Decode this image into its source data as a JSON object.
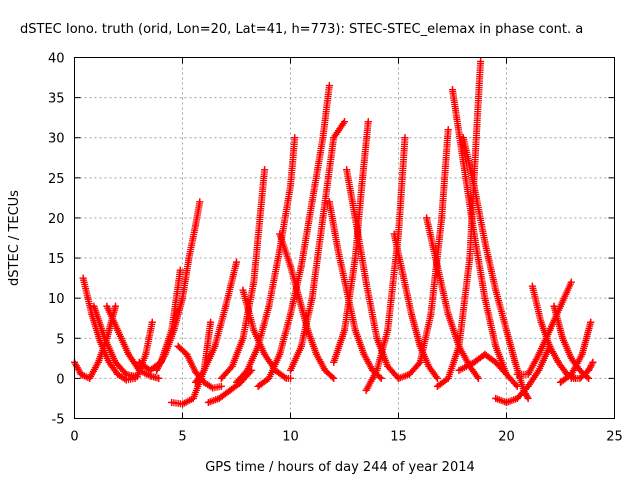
{
  "chart_data": {
    "type": "scatter",
    "title": "dSTEC Iono. truth (orid, Lon=20, Lat=41, h=773): STEC-STEC_elemax in phase cont. a",
    "xlabel": "GPS time / hours of day 244 of year 2014",
    "ylabel": "dSTEC  / TECUs",
    "xlim": [
      0,
      25
    ],
    "ylim": [
      -5,
      40
    ],
    "xticks": [
      0,
      5,
      10,
      15,
      20,
      25
    ],
    "yticks": [
      -5,
      0,
      5,
      10,
      15,
      20,
      25,
      30,
      35,
      40
    ],
    "grid": true,
    "marker": "+",
    "color": "#ff0000",
    "series": [
      {
        "x": [
          0.0,
          0.3,
          0.7,
          1.1,
          1.5,
          1.9
        ],
        "y": [
          2.0,
          0.5,
          0.0,
          2.0,
          5.0,
          9.0
        ]
      },
      {
        "x": [
          0.4,
          0.8,
          1.2,
          1.6,
          2.0,
          2.4,
          2.8
        ],
        "y": [
          12.5,
          8.0,
          4.5,
          2.0,
          0.5,
          -0.2,
          0.0
        ]
      },
      {
        "x": [
          0.9,
          1.4,
          1.9,
          2.4,
          2.9,
          3.3,
          3.6
        ],
        "y": [
          9.0,
          5.0,
          2.0,
          0.5,
          0.2,
          3.0,
          7.0
        ]
      },
      {
        "x": [
          1.5,
          2.0,
          2.5,
          3.0,
          3.5,
          3.9
        ],
        "y": [
          9.0,
          6.0,
          3.0,
          1.0,
          0.3,
          0.0
        ]
      },
      {
        "x": [
          3.0,
          3.5,
          4.0,
          4.5,
          4.9
        ],
        "y": [
          2.0,
          1.0,
          2.0,
          6.0,
          13.5
        ]
      },
      {
        "x": [
          3.8,
          4.2,
          4.6,
          5.0,
          5.3,
          5.6,
          5.8
        ],
        "y": [
          1.0,
          3.0,
          6.0,
          10.0,
          15.0,
          19.0,
          22.0
        ]
      },
      {
        "x": [
          4.5,
          5.0,
          5.5,
          6.0,
          6.3
        ],
        "y": [
          -3.0,
          -3.2,
          -2.5,
          1.0,
          7.0
        ]
      },
      {
        "x": [
          4.8,
          5.2,
          5.6,
          6.0,
          6.4,
          6.8
        ],
        "y": [
          4.0,
          3.0,
          0.8,
          -0.5,
          -1.2,
          -1.0
        ]
      },
      {
        "x": [
          5.6,
          6.0,
          6.5,
          7.0,
          7.5
        ],
        "y": [
          -0.5,
          1.0,
          4.0,
          9.0,
          14.5
        ]
      },
      {
        "x": [
          6.2,
          6.7,
          7.2,
          7.7,
          8.2
        ],
        "y": [
          -3.0,
          -2.5,
          -1.5,
          -0.5,
          1.0
        ]
      },
      {
        "x": [
          6.8,
          7.3,
          7.8,
          8.3,
          8.8
        ],
        "y": [
          0.0,
          1.5,
          5.0,
          12.0,
          26.0
        ]
      },
      {
        "x": [
          7.5,
          8.0,
          8.5,
          9.0,
          9.5,
          10.0,
          10.2
        ],
        "y": [
          -0.5,
          1.0,
          4.0,
          9.0,
          16.0,
          24.0,
          30.0
        ]
      },
      {
        "x": [
          7.8,
          8.3,
          8.8,
          9.3,
          9.8,
          10.0
        ],
        "y": [
          11.0,
          6.0,
          3.0,
          1.0,
          0.0,
          0.0
        ]
      },
      {
        "x": [
          8.5,
          9.0,
          9.5,
          10.0,
          10.5,
          11.0,
          11.5,
          11.8
        ],
        "y": [
          -1.0,
          0.0,
          3.0,
          8.0,
          14.0,
          22.0,
          30.0,
          36.5
        ]
      },
      {
        "x": [
          9.5,
          10.0,
          10.4,
          10.8,
          11.2,
          11.6,
          12.0
        ],
        "y": [
          18.0,
          14.0,
          10.0,
          6.0,
          3.0,
          1.0,
          0.0
        ]
      },
      {
        "x": [
          10.0,
          10.5,
          11.0,
          11.5,
          12.0,
          12.5
        ],
        "y": [
          1.0,
          4.0,
          10.0,
          20.0,
          30.0,
          32.0
        ]
      },
      {
        "x": [
          11.8,
          12.2,
          12.6,
          13.0,
          13.4,
          13.8,
          14.2
        ],
        "y": [
          22.0,
          16.0,
          11.0,
          6.0,
          3.0,
          1.0,
          0.0
        ]
      },
      {
        "x": [
          12.0,
          12.5,
          13.0,
          13.3,
          13.6
        ],
        "y": [
          2.0,
          6.0,
          15.0,
          24.0,
          32.0
        ]
      },
      {
        "x": [
          12.6,
          13.0,
          13.5,
          14.0,
          14.5,
          15.0
        ],
        "y": [
          26.0,
          20.0,
          12.0,
          5.0,
          1.5,
          0.0
        ]
      },
      {
        "x": [
          13.5,
          14.0,
          14.5,
          15.0,
          15.3
        ],
        "y": [
          -1.5,
          1.0,
          6.0,
          18.0,
          30.0
        ]
      },
      {
        "x": [
          14.8,
          15.2,
          15.6,
          16.0,
          16.4,
          16.8
        ],
        "y": [
          18.0,
          13.0,
          8.0,
          4.0,
          1.5,
          0.0
        ]
      },
      {
        "x": [
          15.0,
          15.5,
          16.0,
          16.5,
          17.0,
          17.3
        ],
        "y": [
          0.0,
          0.5,
          2.0,
          8.0,
          20.0,
          31.0
        ]
      },
      {
        "x": [
          16.3,
          16.8,
          17.3,
          17.8,
          18.3,
          18.7
        ],
        "y": [
          20.0,
          14.0,
          8.0,
          4.0,
          1.5,
          0.0
        ]
      },
      {
        "x": [
          16.8,
          17.3,
          17.8,
          18.3,
          18.6,
          18.8
        ],
        "y": [
          -1.0,
          0.0,
          4.0,
          15.0,
          30.0,
          39.5
        ]
      },
      {
        "x": [
          17.5,
          18.0,
          18.5,
          19.0,
          19.5,
          20.0
        ],
        "y": [
          36.0,
          27.0,
          18.0,
          10.0,
          4.0,
          0.5
        ]
      },
      {
        "x": [
          17.8,
          18.5,
          19.0,
          19.5,
          20.0,
          20.5
        ],
        "y": [
          1.0,
          2.0,
          3.0,
          2.0,
          0.5,
          -1.0
        ]
      },
      {
        "x": [
          18.0,
          18.5,
          19.0,
          19.5,
          20.0,
          20.4,
          20.8,
          21.0
        ],
        "y": [
          30.0,
          24.0,
          17.0,
          11.0,
          6.0,
          2.0,
          -1.5,
          -2.5
        ]
      },
      {
        "x": [
          19.5,
          20.0,
          20.5,
          21.0,
          21.5,
          22.0
        ],
        "y": [
          -2.5,
          -3.0,
          -2.5,
          -1.0,
          1.0,
          4.0
        ]
      },
      {
        "x": [
          20.5,
          21.0,
          21.5,
          22.0,
          22.5,
          23.0
        ],
        "y": [
          0.5,
          0.5,
          3.0,
          6.0,
          9.0,
          12.0
        ]
      },
      {
        "x": [
          21.2,
          21.6,
          22.0,
          22.4,
          22.8,
          23.2
        ],
        "y": [
          11.5,
          7.0,
          4.0,
          2.0,
          0.5,
          0.0
        ]
      },
      {
        "x": [
          22.2,
          22.6,
          23.0,
          23.4,
          23.8
        ],
        "y": [
          9.0,
          5.0,
          2.5,
          1.0,
          0.0
        ]
      },
      {
        "x": [
          22.5,
          23.0,
          23.5,
          23.9
        ],
        "y": [
          -0.5,
          0.5,
          3.0,
          7.0
        ]
      },
      {
        "x": [
          23.0,
          23.4,
          23.8,
          24.0
        ],
        "y": [
          0.0,
          0.0,
          1.0,
          2.0
        ]
      }
    ]
  }
}
